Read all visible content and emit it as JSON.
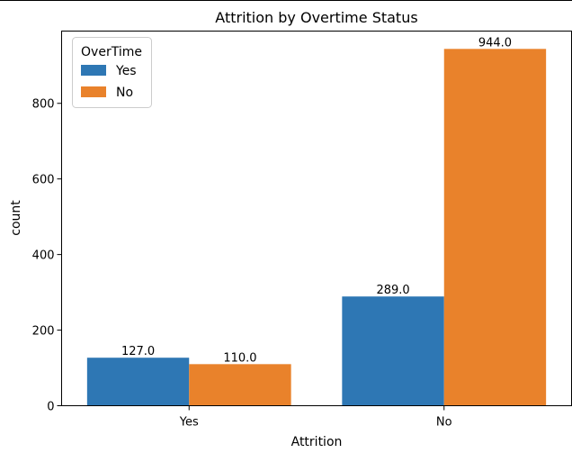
{
  "chart_data": {
    "type": "bar",
    "title": "Attrition by Overtime Status",
    "xlabel": "Attrition",
    "ylabel": "count",
    "categories": [
      "Yes",
      "No"
    ],
    "series": [
      {
        "name": "Yes",
        "values": [
          127,
          289
        ],
        "labels": [
          "127.0",
          "289.0"
        ],
        "color": "#2e77b4"
      },
      {
        "name": "No",
        "values": [
          110,
          944
        ],
        "labels": [
          "110.0",
          "944.0"
        ],
        "color": "#e9822b"
      }
    ],
    "yticks": [
      0,
      200,
      400,
      600,
      800
    ],
    "ylim": [
      0,
      991.2
    ],
    "grid": false,
    "legend": {
      "title": "OverTime",
      "placement": "top-left"
    }
  }
}
